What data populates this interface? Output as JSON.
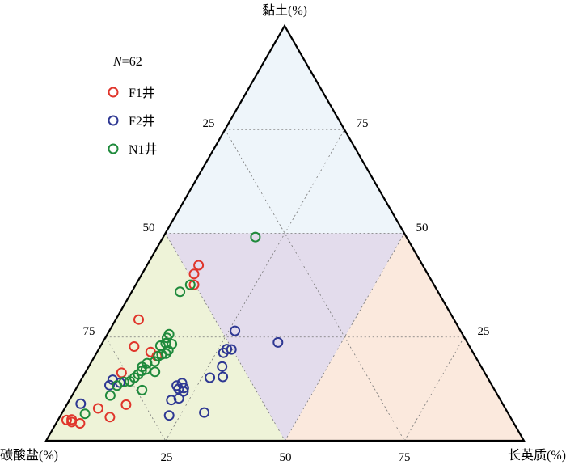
{
  "chart_data": {
    "type": "ternary-scatter",
    "axes": {
      "top": "黏土(%)",
      "left": "碳酸盐(%)",
      "right": "长英质(%)"
    },
    "ticks": {
      "left_edge": [
        "25",
        "50",
        "75"
      ],
      "right_edge": [
        "75",
        "50",
        "25"
      ],
      "bottom_edge": [
        "25",
        "50",
        "75"
      ]
    },
    "legend": {
      "count_prefix": "N",
      "count_value": "=62",
      "placement": "top-left"
    },
    "regions": [
      {
        "name": "clay-rich",
        "color": "#eef5fa"
      },
      {
        "name": "mixed",
        "color": "#e3dcec"
      },
      {
        "name": "carbonate-rich",
        "color": "#eef3d8"
      },
      {
        "name": "felsic-rich",
        "color": "#fbe9dd"
      }
    ],
    "series": [
      {
        "name": "F1井",
        "color": "#e0352b",
        "points": [
          [
            46.9,
            42.3,
            10.8
          ],
          [
            48.9,
            40.2,
            10.9
          ],
          [
            50.2,
            37.6,
            12.2
          ],
          [
            66.0,
            29.2,
            4.8
          ],
          [
            70.2,
            22.7,
            7.1
          ],
          [
            67.4,
            21.4,
            11.2
          ],
          [
            66.6,
            20.4,
            13.0
          ],
          [
            76.0,
            16.4,
            7.6
          ],
          [
            78.9,
            8.7,
            12.4
          ],
          [
            85.2,
            7.8,
            7.0
          ],
          [
            83.8,
            5.7,
            10.5
          ],
          [
            92.1,
            5.1,
            2.8
          ],
          [
            93.2,
            5.0,
            1.8
          ],
          [
            92.4,
            4.5,
            3.1
          ],
          [
            90.8,
            4.2,
            5.0
          ]
        ]
      },
      {
        "name": "F2井",
        "color": "#2e3893",
        "points": [
          [
            39.6,
            23.7,
            36.7
          ],
          [
            47.2,
            26.5,
            26.3
          ],
          [
            51.1,
            22.1,
            26.8
          ],
          [
            50.2,
            22.0,
            27.8
          ],
          [
            52.3,
            21.2,
            26.5
          ],
          [
            55.3,
            15.4,
            29.3
          ],
          [
            54.2,
            17.9,
            27.9
          ],
          [
            58.1,
            15.2,
            26.7
          ],
          [
            63.5,
            6.8,
            29.7
          ],
          [
            66.0,
            12.5,
            21.5
          ],
          [
            64.8,
            12.7,
            22.5
          ],
          [
            66.0,
            13.3,
            20.7
          ],
          [
            67.1,
            10.2,
            22.7
          ],
          [
            68.9,
            9.8,
            21.3
          ],
          [
            71.2,
            6.1,
            22.7
          ],
          [
            77.5,
            14.0,
            8.5
          ],
          [
            78.7,
            14.7,
            6.6
          ],
          [
            80.0,
            13.4,
            6.6
          ],
          [
            88.3,
            8.9,
            2.8
          ],
          [
            64.6,
            13.9,
            21.5
          ],
          [
            65.3,
            11.9,
            22.8
          ]
        ]
      },
      {
        "name": "N1井",
        "color": "#1f8a3c",
        "points": [
          [
            31.6,
            49.1,
            19.3
          ],
          [
            51.0,
            37.6,
            11.4
          ],
          [
            54.0,
            35.9,
            10.1
          ],
          [
            61.4,
            25.7,
            12.9
          ],
          [
            62.3,
            24.8,
            12.9
          ],
          [
            62.0,
            23.3,
            14.7
          ],
          [
            63.2,
            23.5,
            13.3
          ],
          [
            64.6,
            22.9,
            12.5
          ],
          [
            63.5,
            21.8,
            14.7
          ],
          [
            64.4,
            21.0,
            14.6
          ],
          [
            65.4,
            20.8,
            13.8
          ],
          [
            66.3,
            20.4,
            13.3
          ],
          [
            67.7,
            19.1,
            13.2
          ],
          [
            68.9,
            16.6,
            14.5
          ],
          [
            70.5,
            17.2,
            12.3
          ],
          [
            71.6,
            16.8,
            11.6
          ],
          [
            72.7,
            16.0,
            11.3
          ],
          [
            73.9,
            15.2,
            10.9
          ],
          [
            73.8,
            12.2,
            14.0
          ],
          [
            75.3,
            14.3,
            10.4
          ],
          [
            76.6,
            14.2,
            9.2
          ],
          [
            78.5,
            13.3,
            8.2
          ],
          [
            81.1,
            10.9,
            8.0
          ],
          [
            88.6,
            6.5,
            4.9
          ],
          [
            71.0,
            17.8,
            11.2
          ],
          [
            69.5,
            18.7,
            11.8
          ]
        ]
      }
    ]
  }
}
